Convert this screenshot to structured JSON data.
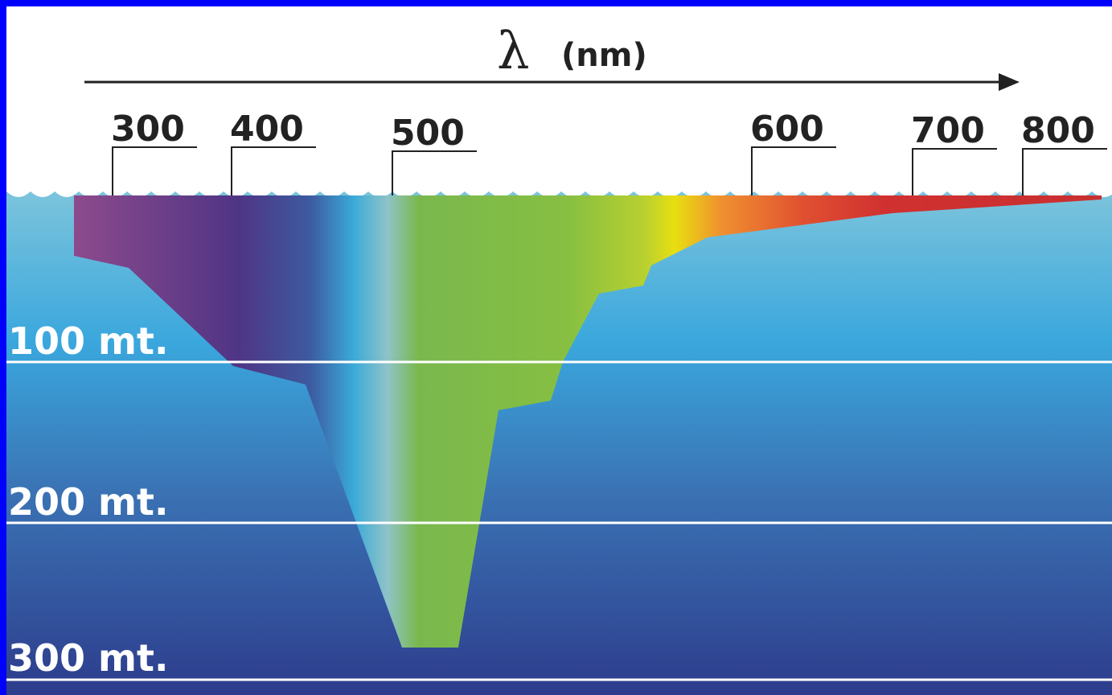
{
  "header": {
    "symbol": "λ",
    "unit": "(nm)"
  },
  "wavelengths": [
    "300",
    "400",
    "500",
    "600",
    "700",
    "800"
  ],
  "depths": [
    "100 mt.",
    "200 mt.",
    "300 mt."
  ]
}
